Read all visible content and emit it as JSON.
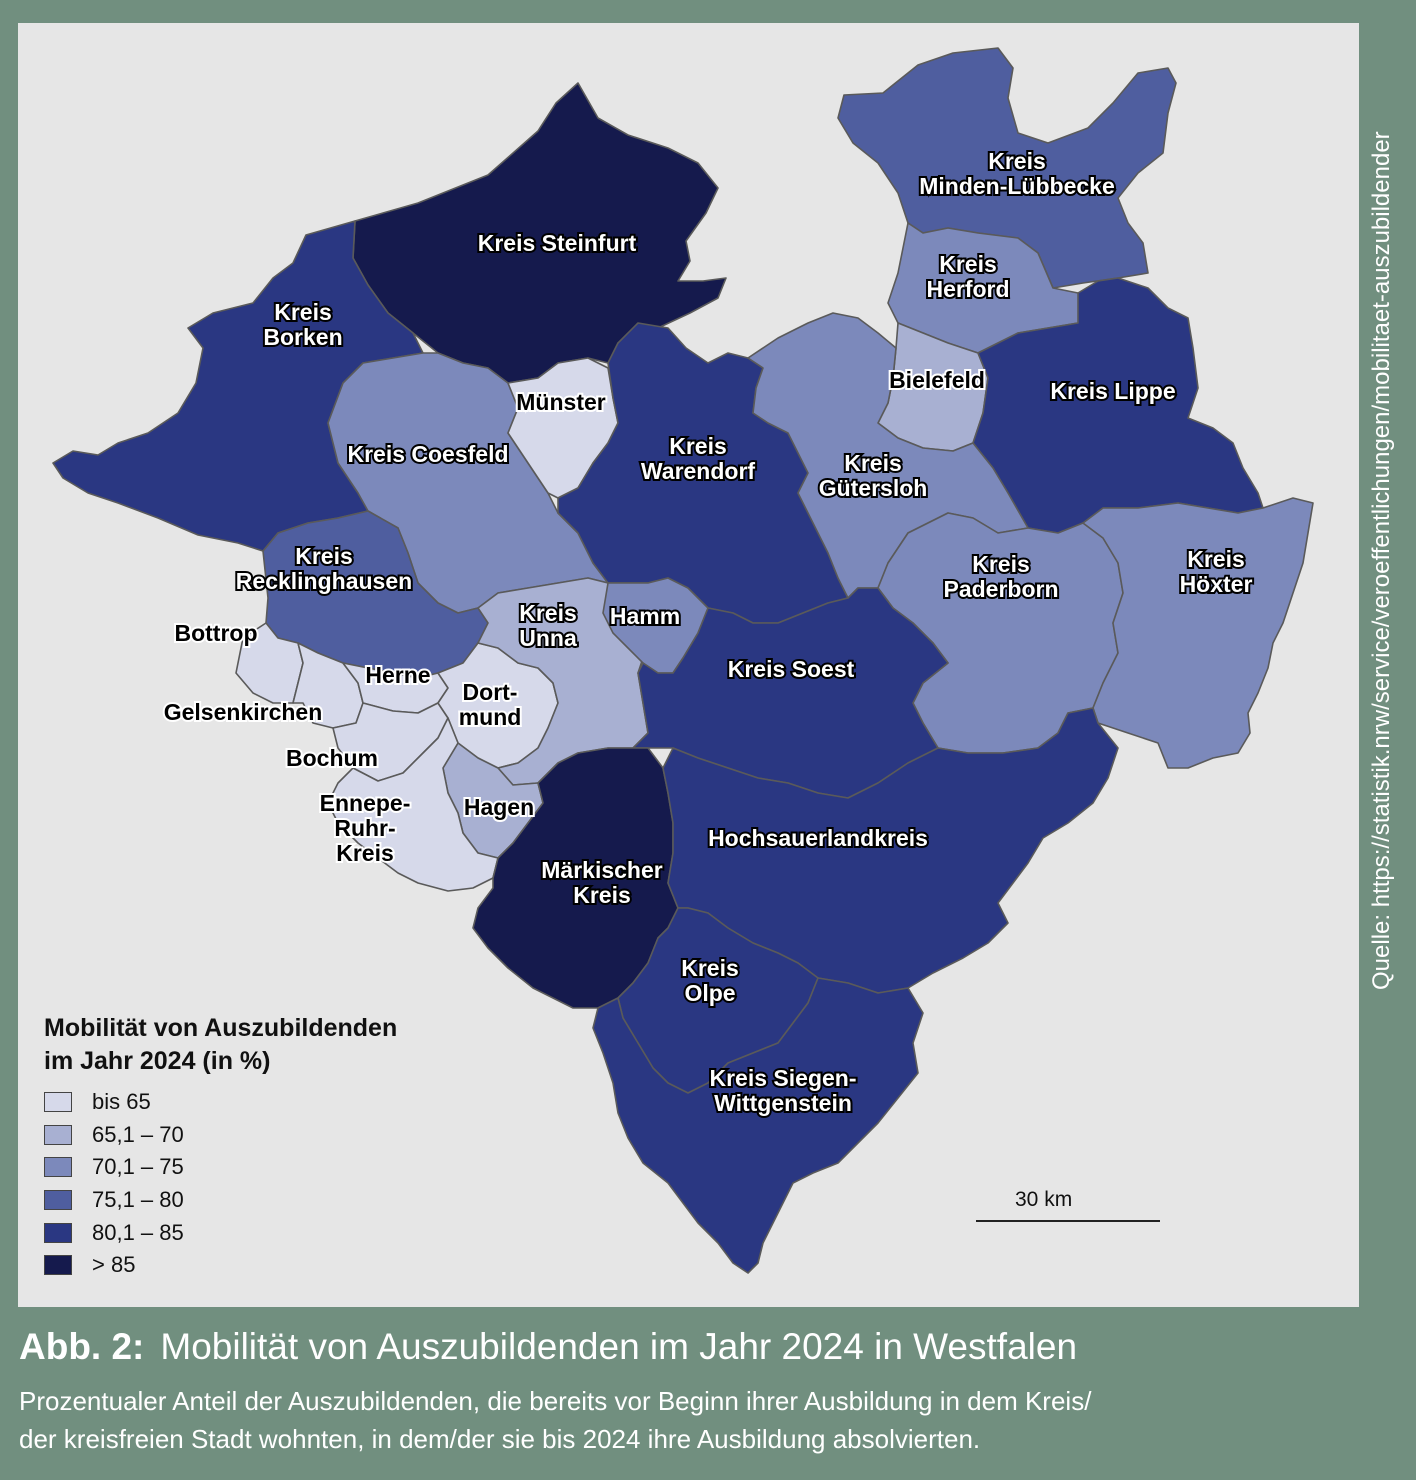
{
  "source": "Quelle: https://statistik.nrw/service/veroeffentlichungen/mobilitaet-auszubildender",
  "caption": {
    "number": "Abb. 2:",
    "title": "Mobilität von Auszubildenden im Jahr 2024 in Westfalen",
    "subtitle": "Prozentualer Anteil der Auszubildenden, die bereits vor Beginn ihrer Ausbildung in dem Kreis/\nder kreisfreien Stadt wohnten, in dem/der sie bis 2024 ihre Ausbildung absolvierten."
  },
  "legend": {
    "title": "Mobilität von Auszubildenden\nim Jahr 2024 (in %)",
    "classes": [
      {
        "label": "bis 65",
        "color": "#d6d9ea"
      },
      {
        "label": "65,1 – 70",
        "color": "#a8b0d2"
      },
      {
        "label": "70,1 – 75",
        "color": "#7c89bb"
      },
      {
        "label": "75,1 – 80",
        "color": "#4f5e9f"
      },
      {
        "label": "80,1 – 85",
        "color": "#2a3782"
      },
      {
        "label": "> 85",
        "color": "#151a4d"
      }
    ]
  },
  "scale": {
    "label": "30 km"
  },
  "regions": {
    "steinfurt": {
      "label": "Kreis Steinfurt",
      "class": 5
    },
    "borken": {
      "label": "Kreis\nBorken",
      "class": 4
    },
    "coesfeld": {
      "label": "Kreis Coesfeld",
      "class": 2
    },
    "muenster": {
      "label": "Münster",
      "class": 0
    },
    "warendorf": {
      "label": "Kreis\nWarendorf",
      "class": 4
    },
    "minden": {
      "label": "Kreis\nMinden-Lübbecke",
      "class": 3
    },
    "herford": {
      "label": "Kreis\nHerford",
      "class": 2
    },
    "bielefeld": {
      "label": "Bielefeld",
      "class": 1
    },
    "lippe": {
      "label": "Kreis Lippe",
      "class": 4
    },
    "guetersloh": {
      "label": "Kreis\nGütersloh",
      "class": 2
    },
    "paderborn": {
      "label": "Kreis\nPaderborn",
      "class": 2
    },
    "hoexter": {
      "label": "Kreis\nHöxter",
      "class": 2
    },
    "recklinghausen": {
      "label": "Kreis\nRecklinghausen",
      "class": 3
    },
    "bottrop": {
      "label": "Bottrop",
      "class": 0
    },
    "gelsenkirchen": {
      "label": "Gelsenkirchen",
      "class": 0
    },
    "herne": {
      "label": "Herne",
      "class": 0
    },
    "bochum": {
      "label": "Bochum",
      "class": 0
    },
    "dortmund": {
      "label": "Dort-\nmund",
      "class": 0
    },
    "unna": {
      "label": "Kreis\nUnna",
      "class": 1
    },
    "hamm": {
      "label": "Hamm",
      "class": 2
    },
    "soest": {
      "label": "Kreis Soest",
      "class": 4
    },
    "hagen": {
      "label": "Hagen",
      "class": 1
    },
    "ennepe": {
      "label": "Ennepe-\nRuhr-\nKreis",
      "class": 0
    },
    "maerkisch": {
      "label": "Märkischer\nKreis",
      "class": 5
    },
    "hochsauerland": {
      "label": "Hochsauerlandkreis",
      "class": 4
    },
    "olpe": {
      "label": "Kreis\nOlpe",
      "class": 4
    },
    "siegen": {
      "label": "Kreis Siegen-\nWittgenstein",
      "class": 4
    }
  }
}
